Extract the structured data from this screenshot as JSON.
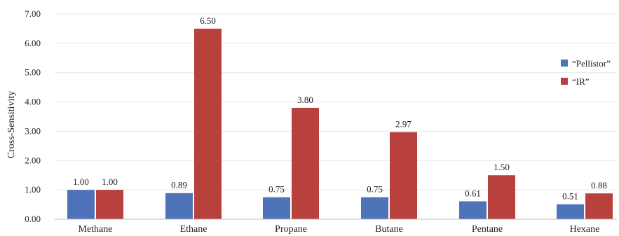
{
  "chart_data": {
    "type": "bar",
    "title": "",
    "xlabel": "",
    "ylabel": "Cross-Sensitivity",
    "ylim": [
      0,
      7
    ],
    "yticks": [
      "0.00",
      "1.00",
      "2.00",
      "3.00",
      "4.00",
      "5.00",
      "6.00",
      "7.00"
    ],
    "grid": true,
    "legend_position": "right",
    "categories": [
      "Methane",
      "Ethane",
      "Propane",
      "Butane",
      "Pentane",
      "Hexane"
    ],
    "series": [
      {
        "name": "“Pellistor”",
        "color": "#4f73b8",
        "values": [
          1.0,
          0.89,
          0.75,
          0.75,
          0.61,
          0.51
        ],
        "labels": [
          "1.00",
          "0.89",
          "0.75",
          "0.75",
          "0.61",
          "0.51"
        ]
      },
      {
        "name": "“IR”",
        "color": "#b8413d",
        "values": [
          1.0,
          6.5,
          3.8,
          2.97,
          1.5,
          0.88
        ],
        "labels": [
          "1.00",
          "6.50",
          "3.80",
          "2.97",
          "1.50",
          "0.88"
        ]
      }
    ]
  }
}
